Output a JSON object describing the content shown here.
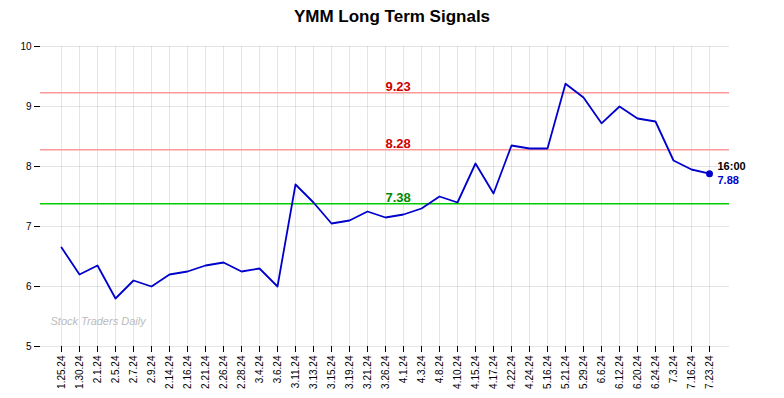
{
  "chart_data": {
    "type": "line",
    "title": "YMM Long Term Signals",
    "categories": [
      "1.25.24",
      "1.30.24",
      "2.1.24",
      "2.5.24",
      "2.7.24",
      "2.9.24",
      "2.14.24",
      "2.16.24",
      "2.21.24",
      "2.26.24",
      "2.28.24",
      "3.4.24",
      "3.6.24",
      "3.11.24",
      "3.13.24",
      "3.15.24",
      "3.19.24",
      "3.21.24",
      "3.26.24",
      "4.1.24",
      "4.3.24",
      "4.8.24",
      "4.10.24",
      "4.15.24",
      "4.17.24",
      "4.22.24",
      "4.24.24",
      "5.16.24",
      "5.21.24",
      "5.29.24",
      "6.6.24",
      "6.12.24",
      "6.20.24",
      "6.24.24",
      "7.3.24",
      "7.16.24",
      "7.23.24"
    ],
    "series": [
      {
        "color": "#0000CC",
        "values": [
          6.65,
          6.2,
          6.35,
          5.8,
          6.1,
          6.0,
          6.2,
          6.25,
          6.35,
          6.4,
          6.25,
          6.3,
          6.0,
          7.7,
          7.4,
          7.05,
          7.1,
          7.25,
          7.15,
          7.2,
          7.3,
          7.5,
          7.4,
          8.05,
          7.55,
          8.35,
          8.3,
          8.3,
          9.38,
          9.15,
          8.72,
          9.0,
          8.8,
          8.75,
          8.1,
          7.95,
          7.88
        ]
      }
    ],
    "hlines": [
      {
        "value": 7.38,
        "color": "#00CC00",
        "label": "7.38",
        "label_color": "#008800",
        "label_x": "3.26.24"
      },
      {
        "value": 8.28,
        "color": "#FF9999",
        "label": "8.28",
        "label_color": "#CC0000",
        "label_x": "3.26.24"
      },
      {
        "value": 9.23,
        "color": "#FF9999",
        "label": "9.23",
        "label_color": "#CC0000",
        "label_x": "3.26.24"
      }
    ],
    "annotations": [
      {
        "text": "16:00",
        "color": "#000000"
      },
      {
        "text": "7.88",
        "color": "#0000CC"
      }
    ],
    "watermark": {
      "text": "Stock Traders Daily",
      "color": "#BBBBBB"
    },
    "ylim": [
      5.0,
      10.0
    ],
    "yticks": [
      5,
      6,
      7,
      8,
      9,
      10
    ],
    "grid": true
  }
}
